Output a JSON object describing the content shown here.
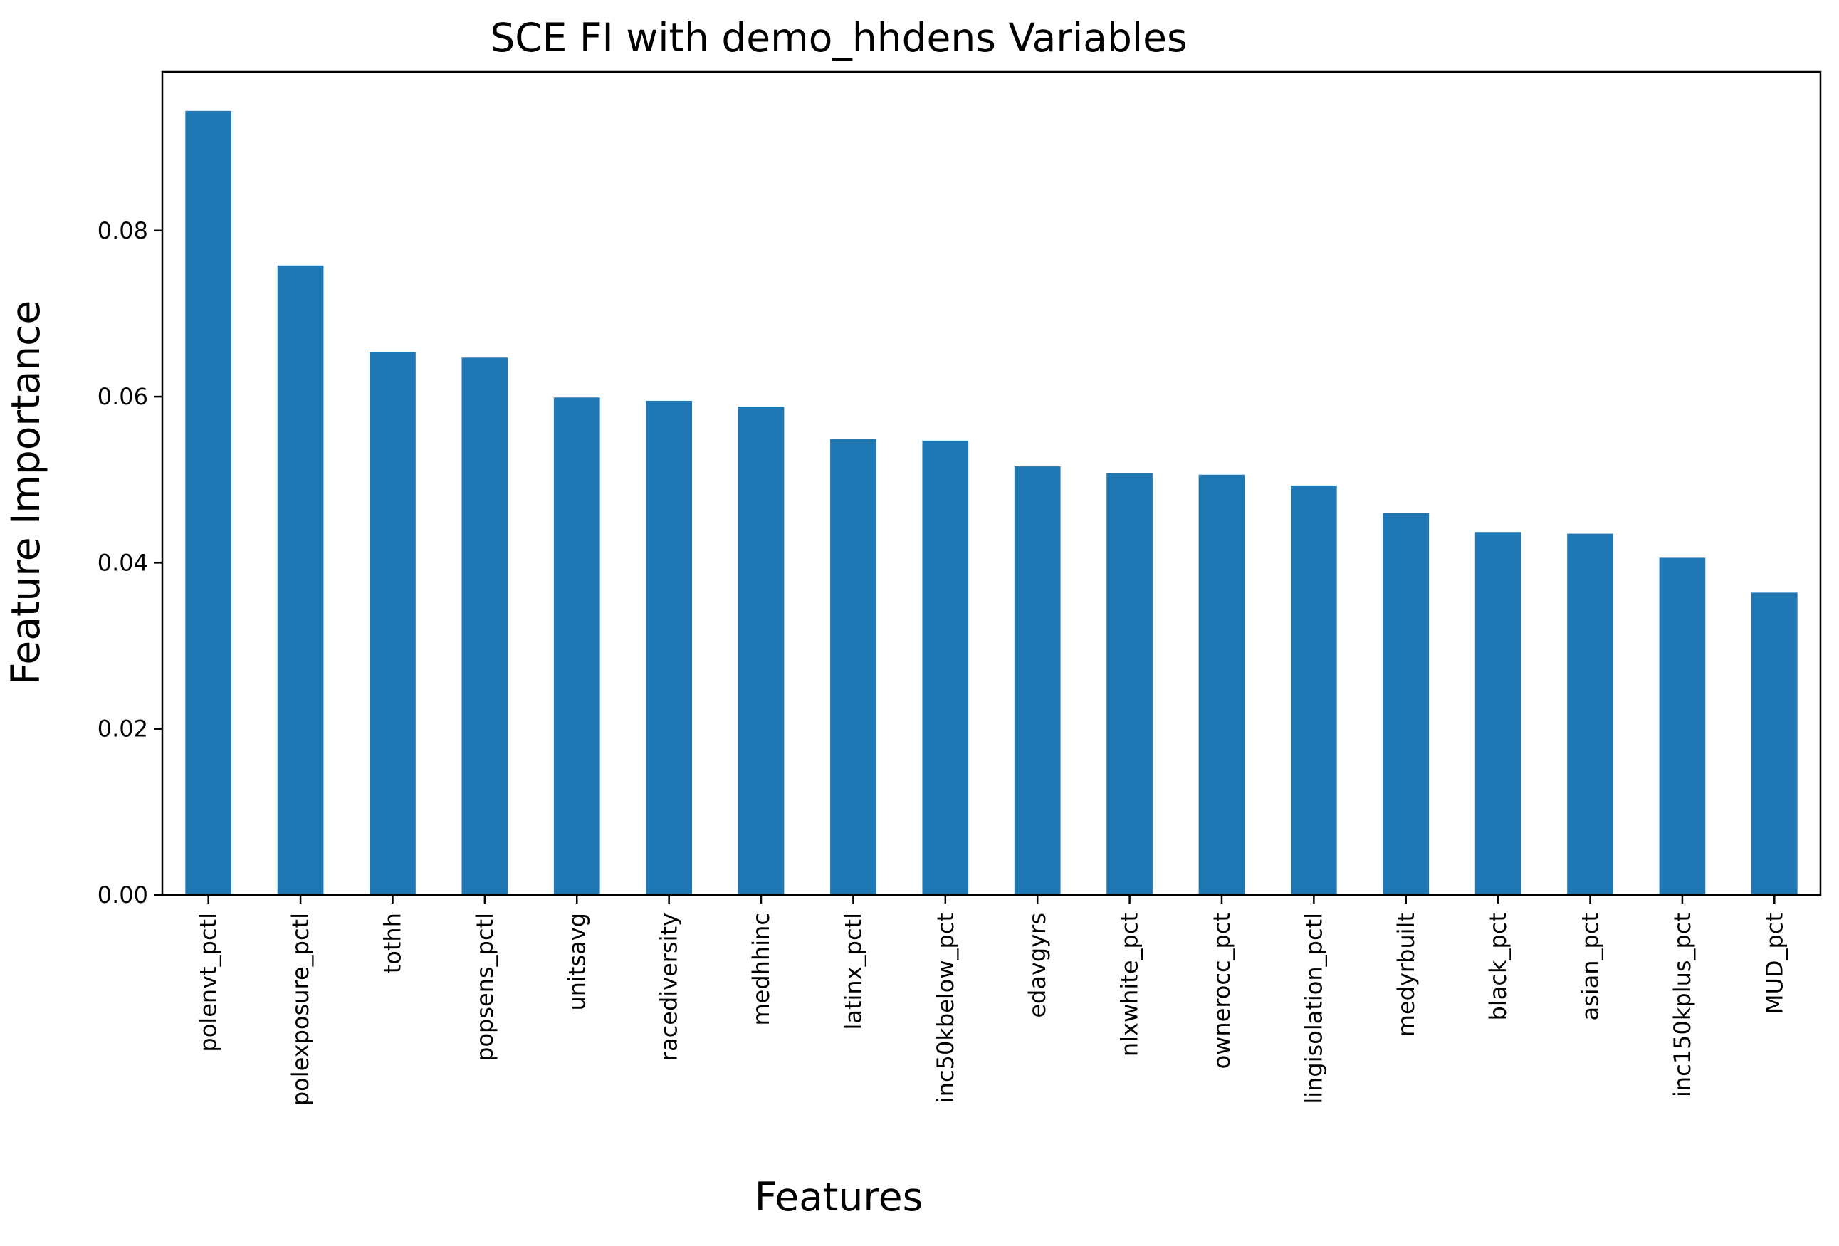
{
  "chart_data": {
    "type": "bar",
    "title": "SCE FI with demo_hhdens Variables",
    "xlabel": "Features",
    "ylabel": "Feature Importance",
    "categories": [
      "polenvt_pctl",
      "polexposure_pctl",
      "tothh",
      "popsens_pctl",
      "unitsavg",
      "racediversity",
      "medhhinc",
      "latinx_pctl",
      "inc50kbelow_pct",
      "edavgyrs",
      "nlxwhite_pct",
      "ownerocc_pct",
      "lingisolation_pctl",
      "medyrbuilt",
      "black_pct",
      "asian_pct",
      "inc150kplus_pct",
      "MUD_pct"
    ],
    "values": [
      0.0944,
      0.0758,
      0.0654,
      0.0647,
      0.0599,
      0.0595,
      0.0588,
      0.0549,
      0.0547,
      0.0516,
      0.0508,
      0.0506,
      0.0493,
      0.046,
      0.0437,
      0.0435,
      0.0406,
      0.0364
    ],
    "ylim": [
      0,
      0.0991
    ],
    "yticks": [
      0.0,
      0.02,
      0.04,
      0.06,
      0.08
    ],
    "ytick_labels": [
      "0.00",
      "0.02",
      "0.04",
      "0.06",
      "0.08"
    ],
    "bar_color": "#1f77b4",
    "grid": false,
    "legend": "none"
  }
}
